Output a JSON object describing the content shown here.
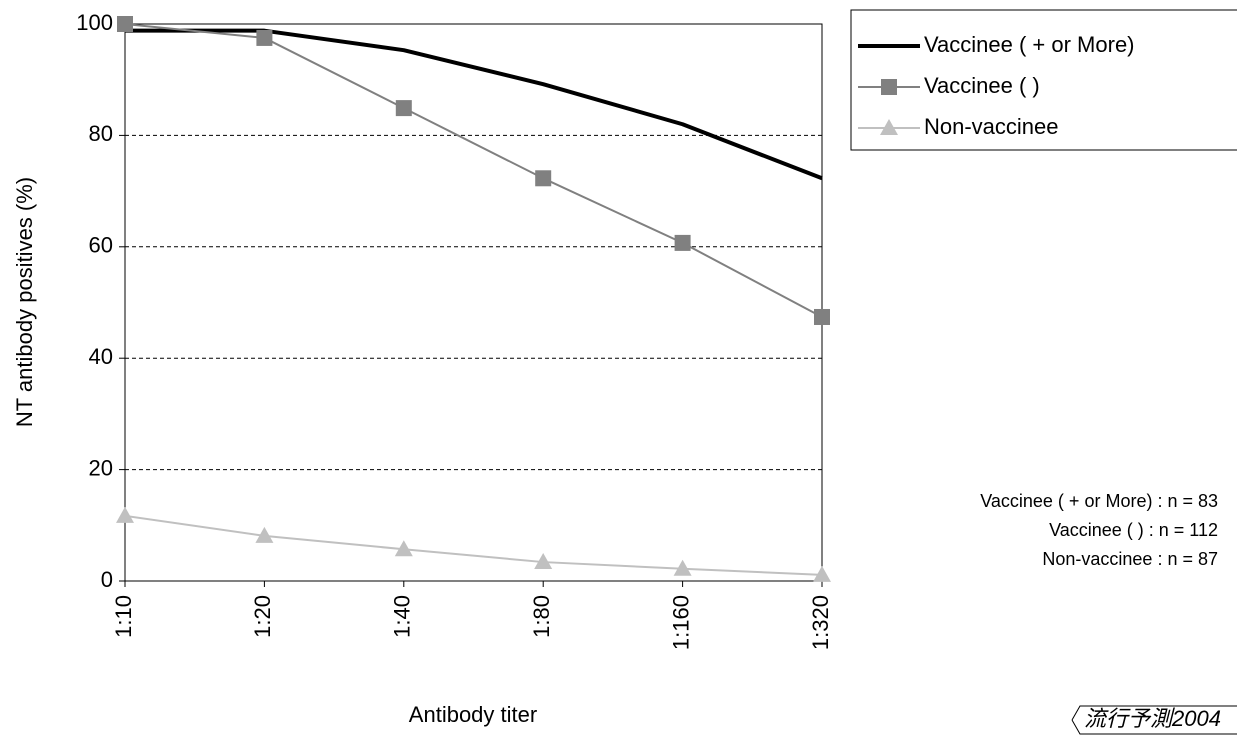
{
  "chart_data": {
    "type": "line",
    "x_label": "Antibody titer",
    "y_label": "NT antibody positives (%)",
    "categories": [
      "1:10",
      "1:20",
      "1:40",
      "1:80",
      "1:160",
      "1:320"
    ],
    "series": [
      {
        "name": "Vaccinee (    +    or More)",
        "color": "#000000",
        "marker": "none",
        "line_width": 4,
        "values": [
          98.8,
          98.8,
          95.3,
          89.2,
          82.0,
          72.3
        ]
      },
      {
        "name": "Vaccinee (    )",
        "color": "#808080",
        "marker": "square",
        "line_width": 2,
        "values": [
          100,
          97.5,
          84.9,
          72.3,
          60.7,
          47.4
        ]
      },
      {
        "name": "Non-vaccinee",
        "color": "#c0c0c0",
        "marker": "triangle",
        "line_width": 2,
        "values": [
          11.7,
          8.1,
          5.7,
          3.4,
          2.2,
          1.1
        ]
      }
    ],
    "ylim": [
      0,
      100
    ],
    "yticks": [
      0,
      20,
      40,
      60,
      80,
      100
    ],
    "grid": true,
    "legend": "right",
    "annotations": [
      "Vaccinee (    +    or More) :  n =   83",
      "Vaccinee (    ) :  n = 112",
      "Non-vaccinee :  n =   87"
    ],
    "watermark": "流行予測2004"
  }
}
